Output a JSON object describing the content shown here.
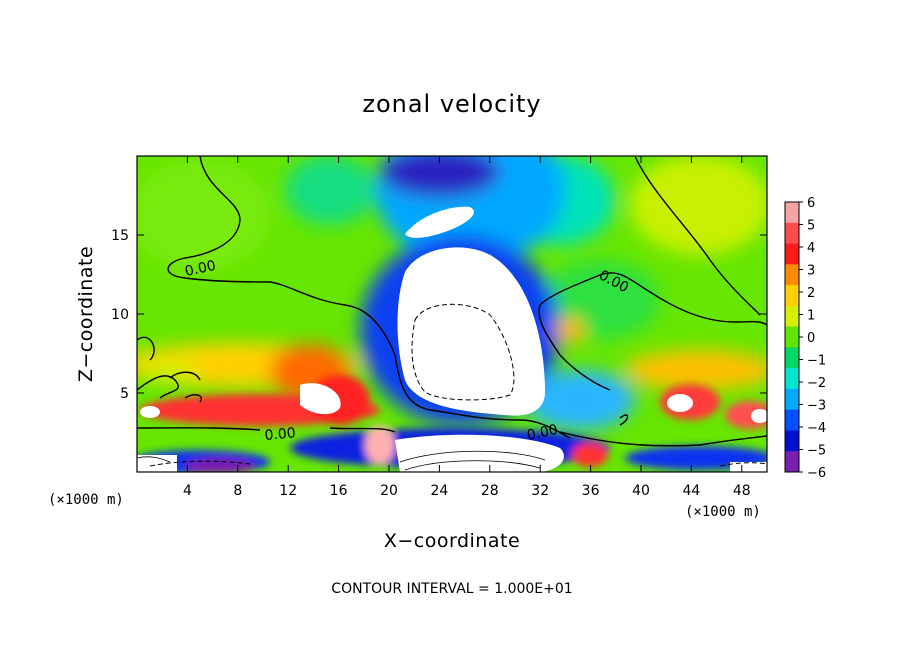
{
  "chart_data": {
    "type": "heatmap",
    "title": "zonal velocity",
    "xlabel": "X−coordinate",
    "ylabel": "Z−coordinate",
    "x_unit_label": "(×1000 m)",
    "x_unit_label_right": "(×1000 m)",
    "xlim": [
      0,
      50
    ],
    "ylim": [
      0,
      20
    ],
    "x_ticks": [
      4,
      8,
      12,
      16,
      20,
      24,
      28,
      32,
      36,
      40,
      44,
      48
    ],
    "y_ticks": [
      5,
      10,
      15
    ],
    "colorbar": {
      "min": -6,
      "max": 6,
      "ticks": [
        "6",
        "5",
        "4",
        "3",
        "2",
        "1",
        "0",
        "−1",
        "−2",
        "−3",
        "−4",
        "−5",
        "−6"
      ],
      "colors": [
        "#f5a3a3",
        "#ff4d4d",
        "#ff1a1a",
        "#ff8c00",
        "#ffd000",
        "#d6f000",
        "#5ce600",
        "#00d966",
        "#00e5d0",
        "#00aaff",
        "#0050ff",
        "#0010d0",
        "#7a1fb0"
      ]
    },
    "contour_labels": [
      "0.00",
      "0.00",
      "0.00",
      "0.00"
    ],
    "contour_interval_text": "CONTOUR INTERVAL = 1.000E+01"
  }
}
